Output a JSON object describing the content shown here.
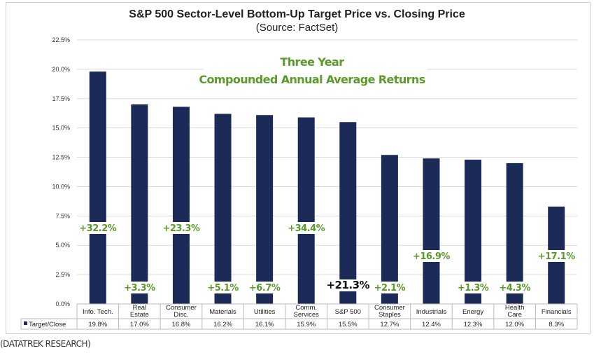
{
  "chart_data": {
    "type": "bar",
    "title": "S&P 500 Sector-Level Bottom-Up Target Price vs. Closing Price",
    "subtitle": "(Source: FactSet)",
    "annotation": [
      "Three Year",
      "Compounded Annual Average Returns"
    ],
    "categories": [
      [
        "Info. Tech."
      ],
      [
        "Real",
        "Estate"
      ],
      [
        "Consumer",
        "Disc."
      ],
      [
        "Materials"
      ],
      [
        "Utilities"
      ],
      [
        "Comm.",
        "Services"
      ],
      [
        "S&P 500"
      ],
      [
        "Consumer",
        "Staples"
      ],
      [
        "Industrials"
      ],
      [
        "Energy"
      ],
      [
        "Health",
        "Care"
      ],
      [
        "Financials"
      ]
    ],
    "series": [
      {
        "name": "Target/Close",
        "values": [
          19.8,
          17.0,
          16.8,
          16.2,
          16.1,
          15.9,
          15.5,
          12.7,
          12.4,
          12.3,
          12.0,
          8.3
        ]
      }
    ],
    "table_values": [
      "19.8%",
      "17.0%",
      "16.8%",
      "16.2%",
      "16.1%",
      "15.9%",
      "15.5%",
      "12.7%",
      "12.4%",
      "12.3%",
      "12.0%",
      "8.3%"
    ],
    "return_labels": [
      "+32.2%",
      "+3.3%",
      "+23.3%",
      "+5.1%",
      "+6.7%",
      "+34.4%",
      "+21.3%",
      "+2.1%",
      "+16.9%",
      "+1.3%",
      "+4.3%",
      "+17.1%"
    ],
    "yticks": [
      "0.0%",
      "2.5%",
      "5.0%",
      "7.5%",
      "10.0%",
      "12.5%",
      "15.0%",
      "17.5%",
      "20.0%",
      "22.5%"
    ],
    "ylim": [
      0,
      22.5
    ],
    "grid": true,
    "legend": "data-table",
    "colors": {
      "bar": "#1b2a57",
      "return_label": "#5a9a2a",
      "sp500_label": "#111111"
    }
  },
  "footer": {
    "source_note": "(DATATREK RESEARCH)"
  }
}
